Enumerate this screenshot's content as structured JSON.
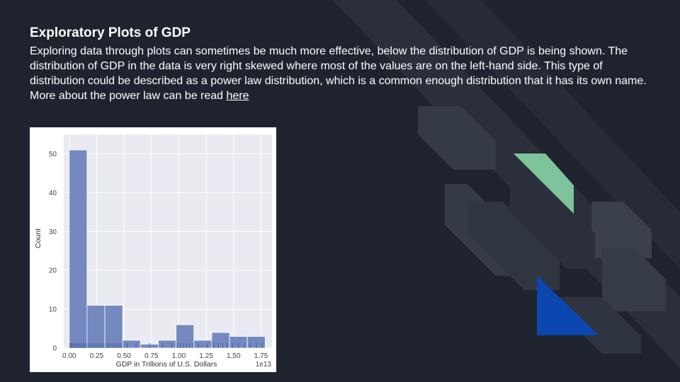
{
  "slide": {
    "title": "Exploratory Plots of GDP",
    "body": "Exploring data through plots can sometimes be much more effective, below the distribution of GDP is being shown. The distribution of GDP in the data is very right skewed where most of the values are on the left-hand side. This type of distribution could be described as a power law distribution, which is a common enough distribution that it has its own name. More about the power law can be read ",
    "link_text": "here"
  },
  "colors": {
    "background": "#1f232e",
    "bar": "#7389bf",
    "plot_bg": "#eaeaf2",
    "accent_green": "#7dc39c",
    "accent_blue": "#0a47b0"
  },
  "chart_data": {
    "type": "bar",
    "subtype": "histogram",
    "xlabel": "GDP in Trillions of U.S. Dollars",
    "ylabel": "Count",
    "offset_label": "1e13",
    "xlim": [
      -0.05,
      1.85
    ],
    "ylim": [
      0,
      55
    ],
    "xticks": [
      "0.00",
      "0.25",
      "0.50",
      "0.75",
      "1.00",
      "1.25",
      "1.50",
      "1.75"
    ],
    "yticks": [
      "0",
      "10",
      "20",
      "30",
      "40",
      "50"
    ],
    "bin_width": 0.1625,
    "bin_start": 0.0,
    "values": [
      51,
      11,
      11,
      2,
      1,
      2,
      6,
      2,
      4,
      3,
      3
    ],
    "rug": true,
    "grid": true
  }
}
